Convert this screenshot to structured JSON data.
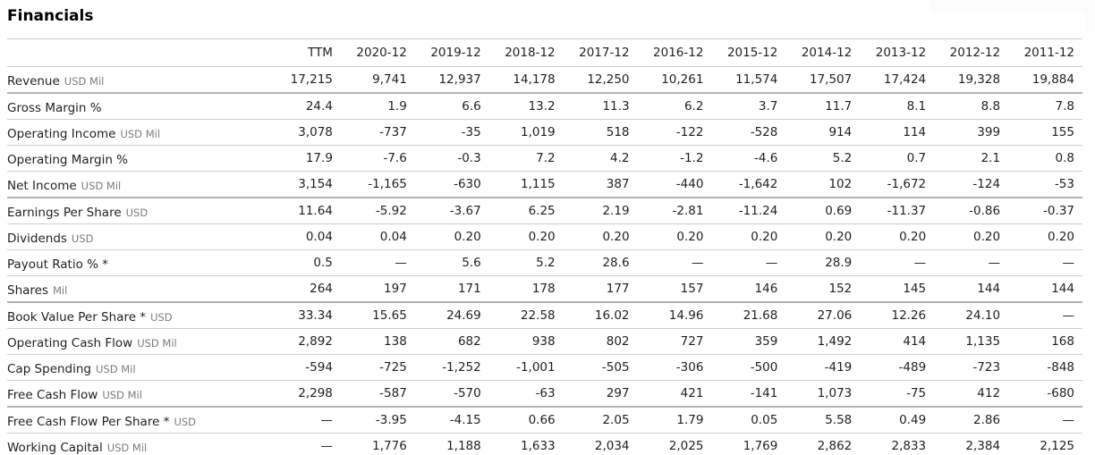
{
  "page": {
    "title": "Financials"
  },
  "table": {
    "columns": [
      "TTM",
      "2020-12",
      "2019-12",
      "2018-12",
      "2017-12",
      "2016-12",
      "2015-12",
      "2014-12",
      "2013-12",
      "2012-12",
      "2011-12"
    ],
    "rows": [
      {
        "label": "Revenue",
        "unit": "USD Mil",
        "values": [
          "17,215",
          "9,741",
          "12,937",
          "14,178",
          "12,250",
          "10,261",
          "11,574",
          "17,507",
          "17,424",
          "19,328",
          "19,884"
        ]
      },
      {
        "label": "Gross Margin %",
        "unit": "",
        "values": [
          "24.4",
          "1.9",
          "6.6",
          "13.2",
          "11.3",
          "6.2",
          "3.7",
          "11.7",
          "8.1",
          "8.8",
          "7.8"
        ]
      },
      {
        "label": "Operating Income",
        "unit": "USD Mil",
        "values": [
          "3,078",
          "-737",
          "-35",
          "1,019",
          "518",
          "-122",
          "-528",
          "914",
          "114",
          "399",
          "155"
        ]
      },
      {
        "label": "Operating Margin %",
        "unit": "",
        "values": [
          "17.9",
          "-7.6",
          "-0.3",
          "7.2",
          "4.2",
          "-1.2",
          "-4.6",
          "5.2",
          "0.7",
          "2.1",
          "0.8"
        ]
      },
      {
        "label": "Net Income",
        "unit": "USD Mil",
        "values": [
          "3,154",
          "-1,165",
          "-630",
          "1,115",
          "387",
          "-440",
          "-1,642",
          "102",
          "-1,672",
          "-124",
          "-53"
        ]
      },
      {
        "label": "Earnings Per Share",
        "unit": "USD",
        "values": [
          "11.64",
          "-5.92",
          "-3.67",
          "6.25",
          "2.19",
          "-2.81",
          "-11.24",
          "0.69",
          "-11.37",
          "-0.86",
          "-0.37"
        ]
      },
      {
        "label": "Dividends",
        "unit": "USD",
        "values": [
          "0.04",
          "0.04",
          "0.20",
          "0.20",
          "0.20",
          "0.20",
          "0.20",
          "0.20",
          "0.20",
          "0.20",
          "0.20"
        ]
      },
      {
        "label": "Payout Ratio % *",
        "unit": "",
        "values": [
          "0.5",
          "—",
          "5.6",
          "5.2",
          "28.6",
          "—",
          "—",
          "28.9",
          "—",
          "—",
          "—"
        ]
      },
      {
        "label": "Shares",
        "unit": "Mil",
        "values": [
          "264",
          "197",
          "171",
          "178",
          "177",
          "157",
          "146",
          "152",
          "145",
          "144",
          "144"
        ]
      },
      {
        "label": "Book Value Per Share *",
        "unit": "USD",
        "values": [
          "33.34",
          "15.65",
          "24.69",
          "22.58",
          "16.02",
          "14.96",
          "21.68",
          "27.06",
          "12.26",
          "24.10",
          "—"
        ]
      },
      {
        "label": "Operating Cash Flow",
        "unit": "USD Mil",
        "values": [
          "2,892",
          "138",
          "682",
          "938",
          "802",
          "727",
          "359",
          "1,492",
          "414",
          "1,135",
          "168"
        ]
      },
      {
        "label": "Cap Spending",
        "unit": "USD Mil",
        "values": [
          "-594",
          "-725",
          "-1,252",
          "-1,001",
          "-505",
          "-306",
          "-500",
          "-419",
          "-489",
          "-723",
          "-848"
        ]
      },
      {
        "label": "Free Cash Flow",
        "unit": "USD Mil",
        "values": [
          "2,298",
          "-587",
          "-570",
          "-63",
          "297",
          "421",
          "-141",
          "1,073",
          "-75",
          "412",
          "-680"
        ]
      },
      {
        "label": "Free Cash Flow Per Share *",
        "unit": "USD",
        "values": [
          "—",
          "-3.95",
          "-4.15",
          "0.66",
          "2.05",
          "1.79",
          "0.05",
          "5.58",
          "0.49",
          "2.86",
          "—"
        ]
      },
      {
        "label": "Working Capital",
        "unit": "USD Mil",
        "values": [
          "—",
          "1,776",
          "1,188",
          "1,633",
          "2,034",
          "2,025",
          "1,769",
          "2,862",
          "2,833",
          "2,384",
          "2,125"
        ]
      }
    ]
  }
}
